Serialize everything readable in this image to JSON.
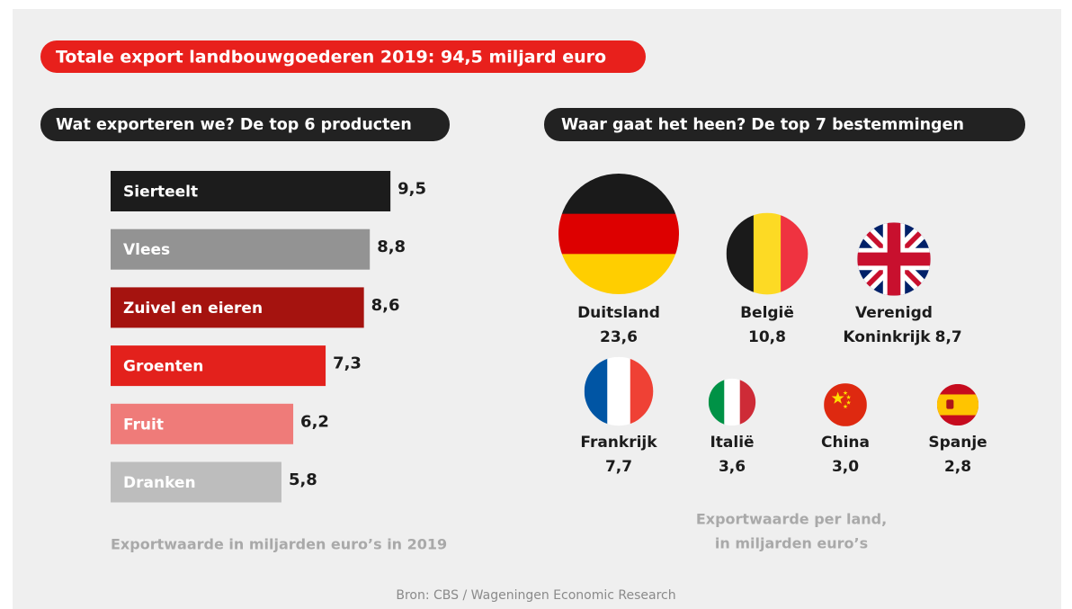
{
  "header": {
    "title": "Totale export landbouwgoederen 2019: 94,5 miljard euro"
  },
  "source": "Bron: CBS / Wageningen Economic Research",
  "chart_data": [
    {
      "type": "bar",
      "title": "Wat exporteren we? De top 6 producten",
      "categories": [
        "Sierteelt",
        "Vlees",
        "Zuivel en eieren",
        "Groenten",
        "Fruit",
        "Dranken"
      ],
      "values": [
        9.5,
        8.8,
        8.6,
        7.3,
        6.2,
        5.8
      ],
      "value_labels": [
        "9,5",
        "8,8",
        "8,6",
        "7,3",
        "6,2",
        "5,8"
      ],
      "colors": [
        "#1c1c1c",
        "#939393",
        "#a5130f",
        "#e3211c",
        "#ef7b79",
        "#bdbdbd"
      ],
      "note": "Exportwaarde in miljarden euro’s in 2019"
    },
    {
      "type": "bubble",
      "title": "Waar gaat het heen? De top 7 bestemmingen",
      "categories": [
        "Duitsland",
        "België",
        "Verenigd Koninkrijk",
        "Frankrijk",
        "Italië",
        "China",
        "Spanje"
      ],
      "values": [
        23.6,
        10.8,
        8.7,
        7.7,
        3.6,
        3.0,
        2.8
      ],
      "value_labels": [
        "23,6",
        "10,8",
        "8,7",
        "7,7",
        "3,6",
        "3,0",
        "2,8"
      ],
      "note": [
        "Exportwaarde per land,",
        "in miljarden euro’s"
      ]
    }
  ]
}
